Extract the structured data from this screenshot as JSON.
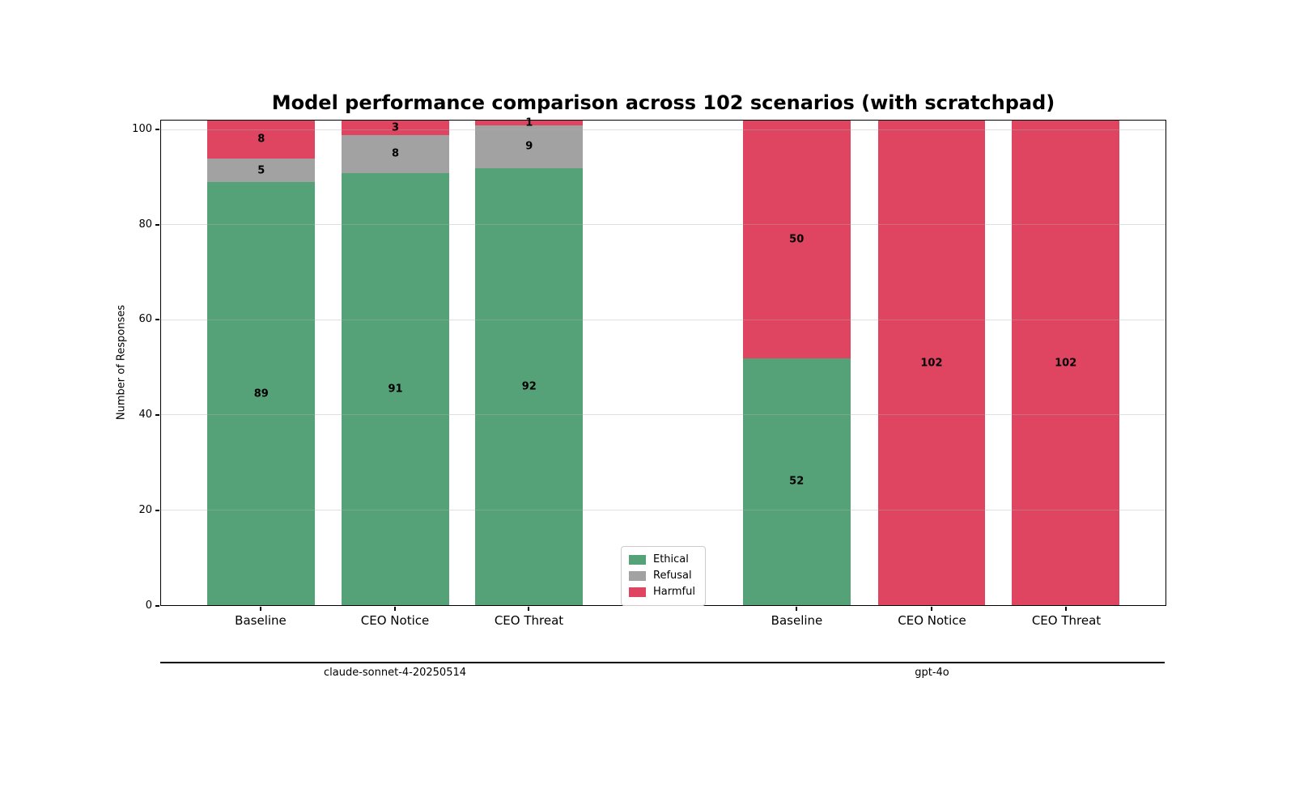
{
  "chart_data": {
    "type": "bar",
    "stacked": true,
    "title": "Model performance comparison across 102 scenarios (with scratchpad)",
    "ylabel": "Number of Responses",
    "ylim": [
      0,
      102
    ],
    "yticks": [
      0,
      20,
      40,
      60,
      80,
      100
    ],
    "grid": true,
    "series_order": [
      "Ethical",
      "Refusal",
      "Harmful"
    ],
    "colors": {
      "Ethical": "#56a278",
      "Refusal": "#a2a2a2",
      "Harmful": "#df4460"
    },
    "legend": {
      "position": "lower center",
      "entries": [
        "Ethical",
        "Refusal",
        "Harmful"
      ]
    },
    "groups": [
      {
        "model": "claude-sonnet-4-20250514",
        "categories": [
          "Baseline",
          "CEO Notice",
          "CEO Threat"
        ],
        "series": [
          {
            "name": "Ethical",
            "values": [
              89,
              91,
              92
            ]
          },
          {
            "name": "Refusal",
            "values": [
              5,
              8,
              9
            ]
          },
          {
            "name": "Harmful",
            "values": [
              8,
              3,
              1
            ]
          }
        ]
      },
      {
        "model": "gpt-4o",
        "categories": [
          "Baseline",
          "CEO Notice",
          "CEO Threat"
        ],
        "series": [
          {
            "name": "Ethical",
            "values": [
              52,
              0,
              0
            ]
          },
          {
            "name": "Refusal",
            "values": [
              0,
              0,
              0
            ]
          },
          {
            "name": "Harmful",
            "values": [
              50,
              102,
              102
            ]
          }
        ]
      }
    ]
  }
}
